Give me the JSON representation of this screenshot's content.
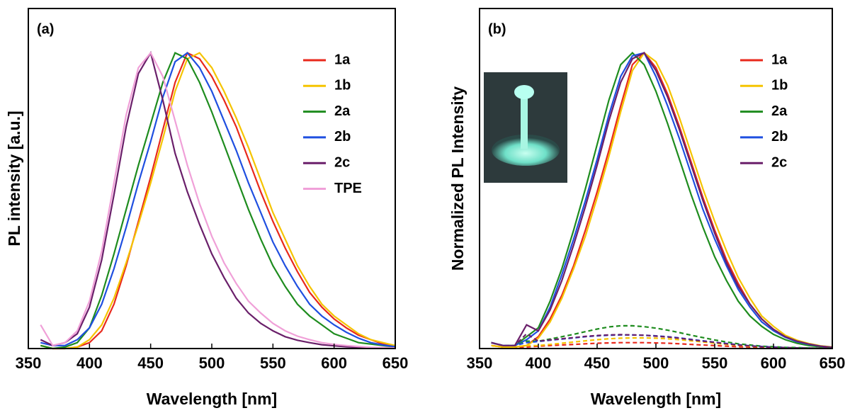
{
  "chart_data": [
    {
      "type": "line",
      "panel_label": "(a)",
      "xlabel": "Wavelength [nm]",
      "ylabel": "PL intensity [a.u.]",
      "xlim": [
        350,
        650
      ],
      "xticks": [
        350,
        400,
        450,
        500,
        550,
        600,
        650
      ],
      "ylim": [
        0,
        1.15
      ],
      "x": [
        360,
        370,
        380,
        390,
        400,
        410,
        420,
        430,
        440,
        450,
        460,
        470,
        480,
        490,
        500,
        510,
        520,
        530,
        540,
        550,
        560,
        570,
        580,
        590,
        600,
        610,
        620,
        630,
        640,
        650
      ],
      "series": [
        {
          "name": "1a",
          "color": "#e8291c",
          "values": [
            0.01,
            0,
            0,
            0.005,
            0.02,
            0.06,
            0.15,
            0.28,
            0.43,
            0.58,
            0.74,
            0.9,
            1.0,
            0.98,
            0.92,
            0.84,
            0.75,
            0.64,
            0.53,
            0.43,
            0.34,
            0.26,
            0.19,
            0.14,
            0.1,
            0.07,
            0.045,
            0.03,
            0.015,
            0.01
          ]
        },
        {
          "name": "1b",
          "color": "#f5c400",
          "values": [
            0.01,
            0,
            0,
            0.005,
            0.03,
            0.08,
            0.17,
            0.29,
            0.42,
            0.56,
            0.71,
            0.87,
            0.98,
            1.0,
            0.95,
            0.87,
            0.78,
            0.68,
            0.57,
            0.46,
            0.37,
            0.28,
            0.21,
            0.15,
            0.11,
            0.08,
            0.05,
            0.03,
            0.02,
            0.01
          ]
        },
        {
          "name": "2a",
          "color": "#1e8c1e",
          "values": [
            0.01,
            0,
            0.005,
            0.02,
            0.07,
            0.18,
            0.32,
            0.47,
            0.62,
            0.76,
            0.9,
            1.0,
            0.98,
            0.9,
            0.8,
            0.69,
            0.58,
            0.47,
            0.37,
            0.28,
            0.21,
            0.15,
            0.11,
            0.08,
            0.05,
            0.035,
            0.02,
            0.015,
            0.01,
            0.005
          ]
        },
        {
          "name": "2b",
          "color": "#1f4fe0",
          "values": [
            0.02,
            0.01,
            0.01,
            0.03,
            0.07,
            0.15,
            0.27,
            0.41,
            0.56,
            0.7,
            0.85,
            0.97,
            1.0,
            0.95,
            0.87,
            0.77,
            0.67,
            0.56,
            0.46,
            0.36,
            0.28,
            0.21,
            0.15,
            0.11,
            0.08,
            0.055,
            0.035,
            0.02,
            0.012,
            0.006
          ]
        },
        {
          "name": "2c",
          "color": "#6a1f6a",
          "values": [
            0.03,
            0.01,
            0.02,
            0.05,
            0.14,
            0.3,
            0.52,
            0.75,
            0.93,
            1.0,
            0.84,
            0.66,
            0.53,
            0.42,
            0.32,
            0.24,
            0.17,
            0.12,
            0.085,
            0.06,
            0.04,
            0.028,
            0.02,
            0.013,
            0.009,
            0.006,
            0.004,
            0.003,
            0.002,
            0.001
          ]
        },
        {
          "name": "TPE",
          "color": "#f0a0d8",
          "values": [
            0.08,
            0.01,
            0.02,
            0.06,
            0.16,
            0.33,
            0.56,
            0.79,
            0.95,
            1.0,
            0.92,
            0.77,
            0.62,
            0.49,
            0.38,
            0.29,
            0.22,
            0.16,
            0.12,
            0.085,
            0.06,
            0.042,
            0.03,
            0.02,
            0.014,
            0.01,
            0.007,
            0.004,
            0.003,
            0.002
          ]
        }
      ]
    },
    {
      "type": "line",
      "panel_label": "(b)",
      "xlabel": "Wavelength [nm]",
      "ylabel": "Normalized PL Intensity",
      "xlim": [
        350,
        650
      ],
      "xticks": [
        350,
        400,
        450,
        500,
        550,
        600,
        650
      ],
      "ylim": [
        0,
        1.15
      ],
      "x": [
        360,
        370,
        380,
        390,
        400,
        410,
        420,
        430,
        440,
        450,
        460,
        470,
        480,
        490,
        500,
        510,
        520,
        530,
        540,
        550,
        560,
        570,
        580,
        590,
        600,
        610,
        620,
        630,
        640,
        650
      ],
      "series": [
        {
          "name": "1a",
          "color": "#e8291c",
          "values": [
            0.01,
            0.005,
            0.005,
            0.01,
            0.04,
            0.1,
            0.18,
            0.28,
            0.4,
            0.53,
            0.67,
            0.82,
            0.96,
            1.0,
            0.95,
            0.86,
            0.75,
            0.63,
            0.51,
            0.4,
            0.3,
            0.22,
            0.15,
            0.1,
            0.065,
            0.04,
            0.025,
            0.015,
            0.008,
            0.004
          ]
        },
        {
          "name": "1b",
          "color": "#f5c400",
          "values": [
            0.01,
            0.005,
            0.005,
            0.01,
            0.035,
            0.09,
            0.17,
            0.27,
            0.38,
            0.51,
            0.65,
            0.8,
            0.94,
            1.0,
            0.97,
            0.89,
            0.78,
            0.66,
            0.54,
            0.43,
            0.33,
            0.24,
            0.17,
            0.11,
            0.075,
            0.045,
            0.028,
            0.017,
            0.009,
            0.005
          ]
        },
        {
          "name": "2a",
          "color": "#1e8c1e",
          "values": [
            0.02,
            0.01,
            0.01,
            0.04,
            0.07,
            0.16,
            0.27,
            0.4,
            0.54,
            0.69,
            0.84,
            0.96,
            1.0,
            0.96,
            0.87,
            0.76,
            0.64,
            0.52,
            0.41,
            0.31,
            0.23,
            0.16,
            0.11,
            0.075,
            0.048,
            0.03,
            0.018,
            0.01,
            0.006,
            0.003
          ]
        },
        {
          "name": "2b",
          "color": "#1f4fe0",
          "values": [
            0.02,
            0.01,
            0.01,
            0.03,
            0.06,
            0.14,
            0.25,
            0.37,
            0.5,
            0.64,
            0.79,
            0.92,
            0.99,
            1.0,
            0.92,
            0.82,
            0.71,
            0.59,
            0.47,
            0.37,
            0.28,
            0.2,
            0.14,
            0.09,
            0.06,
            0.038,
            0.023,
            0.014,
            0.008,
            0.004
          ]
        },
        {
          "name": "2c",
          "color": "#6a1f6a",
          "values": [
            0.02,
            0.01,
            0.01,
            0.08,
            0.06,
            0.13,
            0.23,
            0.35,
            0.48,
            0.62,
            0.77,
            0.9,
            0.98,
            1.0,
            0.94,
            0.85,
            0.74,
            0.62,
            0.5,
            0.39,
            0.29,
            0.21,
            0.15,
            0.1,
            0.065,
            0.04,
            0.025,
            0.015,
            0.008,
            0.004
          ]
        },
        {
          "color": "#e8291c",
          "dashed": true,
          "values": [
            0.01,
            0.005,
            0.005,
            0.005,
            0.008,
            0.01,
            0.012,
            0.014,
            0.016,
            0.018,
            0.019,
            0.02,
            0.02,
            0.02,
            0.019,
            0.018,
            0.016,
            0.014,
            0.012,
            0.01,
            0.008,
            0.006,
            0.005,
            0.004,
            0.003,
            0.002,
            0.002,
            0.001,
            0.001,
            0.001
          ]
        },
        {
          "color": "#f5c400",
          "dashed": true,
          "values": [
            0.01,
            0.005,
            0.005,
            0.01,
            0.01,
            0.014,
            0.018,
            0.022,
            0.026,
            0.03,
            0.033,
            0.035,
            0.036,
            0.036,
            0.035,
            0.033,
            0.03,
            0.026,
            0.022,
            0.018,
            0.014,
            0.011,
            0.008,
            0.006,
            0.004,
            0.003,
            0.002,
            0.0015,
            0.001,
            0.001
          ]
        },
        {
          "color": "#1e8c1e",
          "dashed": true,
          "values": [
            0.02,
            0.01,
            0.01,
            0.025,
            0.025,
            0.032,
            0.04,
            0.048,
            0.057,
            0.066,
            0.073,
            0.077,
            0.077,
            0.074,
            0.069,
            0.062,
            0.054,
            0.045,
            0.037,
            0.029,
            0.022,
            0.016,
            0.012,
            0.008,
            0.006,
            0.004,
            0.003,
            0.002,
            0.001,
            0.001
          ]
        },
        {
          "color": "#1f4fe0",
          "dashed": true,
          "values": [
            0.02,
            0.01,
            0.01,
            0.02,
            0.024,
            0.028,
            0.032,
            0.036,
            0.04,
            0.043,
            0.045,
            0.046,
            0.046,
            0.045,
            0.043,
            0.04,
            0.036,
            0.031,
            0.026,
            0.021,
            0.017,
            0.013,
            0.009,
            0.007,
            0.005,
            0.003,
            0.002,
            0.0015,
            0.001,
            0.001
          ]
        },
        {
          "color": "#6a1f6a",
          "dashed": true,
          "values": [
            0.02,
            0.01,
            0.01,
            0.05,
            0.025,
            0.029,
            0.033,
            0.037,
            0.041,
            0.044,
            0.046,
            0.047,
            0.046,
            0.045,
            0.042,
            0.039,
            0.035,
            0.03,
            0.025,
            0.021,
            0.016,
            0.012,
            0.009,
            0.006,
            0.004,
            0.003,
            0.002,
            0.0015,
            0.001,
            0.001
          ]
        }
      ]
    }
  ]
}
